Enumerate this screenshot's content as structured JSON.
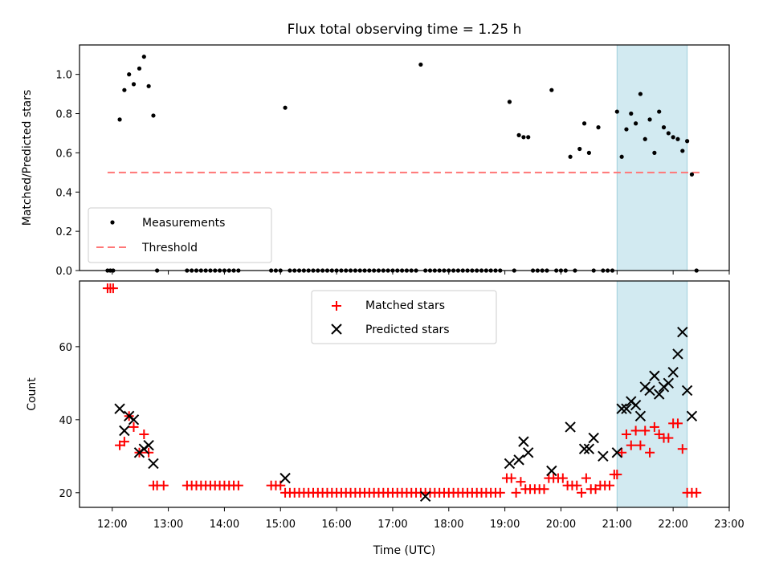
{
  "chart_data": [
    {
      "type": "scatter",
      "title": "Flux total observing time = 1.25 h",
      "xlabel": "",
      "ylabel": "Matched/Predicted stars",
      "xlim": [
        "11:25",
        "23:00"
      ],
      "ylim": [
        0,
        1.15
      ],
      "yticks": [
        "0.0",
        "0.2",
        "0.4",
        "0.6",
        "0.8",
        "1.0"
      ],
      "grid": false,
      "legend_position": "lower-left",
      "shaded_region": {
        "x": [
          "21:00",
          "22:15"
        ],
        "color": "#add8e6"
      },
      "threshold": {
        "name": "Threshold",
        "y": 0.5,
        "x": [
          "11:55",
          "22:30"
        ],
        "color": "#ff7777"
      },
      "series": [
        {
          "name": "Measurements",
          "color": "#000000",
          "x": [
            "11:55",
            "11:58",
            "12:01",
            "12:08",
            "12:13",
            "12:18",
            "12:23",
            "12:29",
            "12:34",
            "12:39",
            "12:44",
            "12:48",
            "13:20",
            "13:25",
            "13:30",
            "13:35",
            "13:40",
            "13:45",
            "13:50",
            "13:55",
            "14:00",
            "14:05",
            "14:10",
            "14:15",
            "14:50",
            "14:55",
            "15:00",
            "15:05",
            "15:10",
            "15:15",
            "15:20",
            "15:25",
            "15:30",
            "15:35",
            "15:40",
            "15:45",
            "15:50",
            "15:55",
            "16:00",
            "16:05",
            "16:10",
            "16:15",
            "16:20",
            "16:25",
            "16:30",
            "16:35",
            "16:40",
            "16:45",
            "16:50",
            "16:55",
            "17:00",
            "17:05",
            "17:10",
            "17:15",
            "17:20",
            "17:25",
            "17:30",
            "17:35",
            "17:40",
            "17:45",
            "17:50",
            "17:55",
            "18:00",
            "18:05",
            "18:10",
            "18:15",
            "18:20",
            "18:25",
            "18:30",
            "18:35",
            "18:40",
            "18:45",
            "18:50",
            "18:55",
            "19:05",
            "19:10",
            "19:15",
            "19:20",
            "19:25",
            "19:30",
            "19:35",
            "19:40",
            "19:45",
            "19:50",
            "19:55",
            "20:00",
            "20:05",
            "20:10",
            "20:15",
            "20:20",
            "20:25",
            "20:30",
            "20:35",
            "20:40",
            "20:45",
            "20:50",
            "20:55",
            "21:00",
            "21:05",
            "21:10",
            "21:15",
            "21:20",
            "21:25",
            "21:30",
            "21:35",
            "21:40",
            "21:45",
            "21:50",
            "21:55",
            "22:00",
            "22:05",
            "22:10",
            "22:15",
            "22:20",
            "22:25"
          ],
          "y": [
            0,
            0,
            0,
            0.77,
            0.92,
            1.0,
            0.95,
            1.03,
            1.09,
            0.94,
            0.79,
            0,
            0,
            0,
            0,
            0,
            0,
            0,
            0,
            0,
            0,
            0,
            0,
            0,
            0,
            0,
            0,
            0.83,
            0,
            0,
            0,
            0,
            0,
            0,
            0,
            0,
            0,
            0,
            0,
            0,
            0,
            0,
            0,
            0,
            0,
            0,
            0,
            0,
            0,
            0,
            0,
            0,
            0,
            0,
            0,
            0,
            1.05,
            0,
            0,
            0,
            0,
            0,
            0,
            0,
            0,
            0,
            0,
            0,
            0,
            0,
            0,
            0,
            0,
            0,
            0.86,
            0,
            0.69,
            0.68,
            0.68,
            0,
            0,
            0,
            0,
            0.92,
            0,
            0,
            0,
            0.58,
            0,
            0.62,
            0.75,
            0.6,
            0,
            0.73,
            0,
            0,
            0,
            0.81,
            0.58,
            0.72,
            0.8,
            0.75,
            0.9,
            0.67,
            0.77,
            0.6,
            0.81,
            0.73,
            0.7,
            0.68,
            0.67,
            0.61,
            0.66,
            0.49,
            0
          ]
        }
      ]
    },
    {
      "type": "scatter",
      "title": "",
      "xlabel": "Time (UTC)",
      "ylabel": "Count",
      "xlim": [
        "11:25",
        "23:00"
      ],
      "ylim": [
        16,
        78
      ],
      "yticks": [
        "20",
        "40",
        "60"
      ],
      "xticks": [
        "12:00",
        "13:00",
        "14:00",
        "15:00",
        "16:00",
        "17:00",
        "18:00",
        "19:00",
        "20:00",
        "21:00",
        "22:00",
        "23:00"
      ],
      "grid": false,
      "legend_position": "top-center",
      "shaded_region": {
        "x": [
          "21:00",
          "22:15"
        ],
        "color": "#add8e6"
      },
      "series": [
        {
          "name": "Matched stars",
          "marker": "plus",
          "color": "#ff0000",
          "x": [
            "11:55",
            "11:58",
            "12:01",
            "12:08",
            "12:13",
            "12:18",
            "12:23",
            "12:29",
            "12:34",
            "12:39",
            "12:44",
            "12:48",
            "12:55",
            "13:20",
            "13:25",
            "13:30",
            "13:35",
            "13:40",
            "13:45",
            "13:50",
            "13:55",
            "14:00",
            "14:05",
            "14:10",
            "14:15",
            "14:50",
            "14:55",
            "15:00",
            "15:05",
            "15:10",
            "15:15",
            "15:20",
            "15:25",
            "15:30",
            "15:35",
            "15:40",
            "15:45",
            "15:50",
            "15:55",
            "16:00",
            "16:05",
            "16:10",
            "16:15",
            "16:20",
            "16:25",
            "16:30",
            "16:35",
            "16:40",
            "16:45",
            "16:50",
            "16:55",
            "17:00",
            "17:05",
            "17:10",
            "17:15",
            "17:20",
            "17:25",
            "17:30",
            "17:35",
            "17:40",
            "17:45",
            "17:50",
            "17:55",
            "18:00",
            "18:05",
            "18:10",
            "18:15",
            "18:20",
            "18:25",
            "18:30",
            "18:35",
            "18:40",
            "18:45",
            "18:50",
            "18:55",
            "19:02",
            "19:07",
            "19:12",
            "19:17",
            "19:22",
            "19:27",
            "19:32",
            "19:37",
            "19:42",
            "19:47",
            "19:52",
            "19:57",
            "20:02",
            "20:07",
            "20:12",
            "20:17",
            "20:22",
            "20:27",
            "20:32",
            "20:37",
            "20:42",
            "20:47",
            "20:52",
            "20:57",
            "21:00",
            "21:05",
            "21:10",
            "21:15",
            "21:20",
            "21:25",
            "21:30",
            "21:35",
            "21:40",
            "21:45",
            "21:50",
            "21:55",
            "22:00",
            "22:05",
            "22:10",
            "22:15",
            "22:20",
            "22:25"
          ],
          "y": [
            76,
            76,
            76,
            33,
            34,
            41,
            38,
            31,
            36,
            31,
            22,
            22,
            22,
            22,
            22,
            22,
            22,
            22,
            22,
            22,
            22,
            22,
            22,
            22,
            22,
            22,
            22,
            22,
            20,
            20,
            20,
            20,
            20,
            20,
            20,
            20,
            20,
            20,
            20,
            20,
            20,
            20,
            20,
            20,
            20,
            20,
            20,
            20,
            20,
            20,
            20,
            20,
            20,
            20,
            20,
            20,
            20,
            20,
            20,
            20,
            20,
            20,
            20,
            20,
            20,
            20,
            20,
            20,
            20,
            20,
            20,
            20,
            20,
            20,
            20,
            24,
            24,
            20,
            23,
            21,
            21,
            21,
            21,
            21,
            24,
            24,
            24,
            24,
            22,
            22,
            22,
            20,
            24,
            21,
            21,
            22,
            22,
            22,
            25,
            25,
            31,
            36,
            33,
            37,
            33,
            37,
            31,
            38,
            36,
            35,
            35,
            39,
            39,
            32,
            20,
            20,
            20
          ]
        },
        {
          "name": "Predicted stars",
          "marker": "x",
          "color": "#000000",
          "x": [
            "12:08",
            "12:13",
            "12:18",
            "12:23",
            "12:29",
            "12:34",
            "12:39",
            "12:44",
            "15:05",
            "17:35",
            "19:05",
            "19:15",
            "19:20",
            "19:25",
            "19:50",
            "20:10",
            "20:25",
            "20:30",
            "20:35",
            "20:45",
            "21:00",
            "21:05",
            "21:10",
            "21:15",
            "21:20",
            "21:25",
            "21:30",
            "21:35",
            "21:40",
            "21:45",
            "21:50",
            "21:55",
            "22:00",
            "22:05",
            "22:10",
            "22:15",
            "22:20"
          ],
          "y": [
            43,
            37,
            41,
            40,
            31,
            32,
            33,
            28,
            24,
            19,
            28,
            29,
            34,
            31,
            26,
            38,
            32,
            32,
            35,
            30,
            31,
            43,
            43,
            45,
            44,
            41,
            49,
            48,
            52,
            47,
            49,
            50,
            53,
            58,
            64,
            48,
            41
          ]
        }
      ]
    }
  ]
}
